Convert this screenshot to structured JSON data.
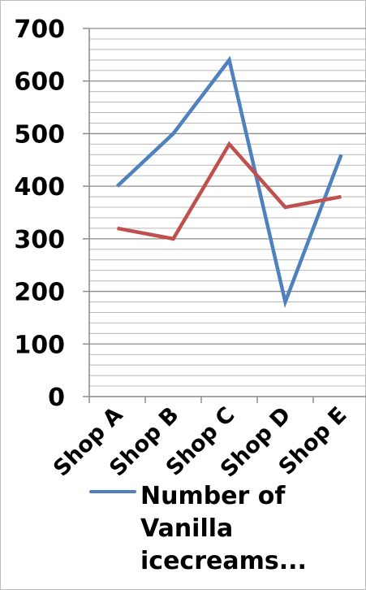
{
  "chart_data": {
    "type": "line",
    "title": "",
    "xlabel": "",
    "ylabel": "",
    "categories": [
      "Shop A",
      "Shop B",
      "Shop C",
      "Shop D",
      "Shop E"
    ],
    "ylim": [
      0,
      700
    ],
    "yticks": [
      "0",
      "100",
      "200",
      "300",
      "400",
      "500",
      "600",
      "700"
    ],
    "grid": true,
    "legend_position": "bottom",
    "series": [
      {
        "name": "Number of Vanilla icecreams...",
        "values": [
          400,
          500,
          640,
          180,
          460
        ],
        "color": "#4f81bd"
      },
      {
        "values": [
          320,
          300,
          480,
          360,
          380
        ],
        "color": "#c0504d"
      }
    ]
  }
}
